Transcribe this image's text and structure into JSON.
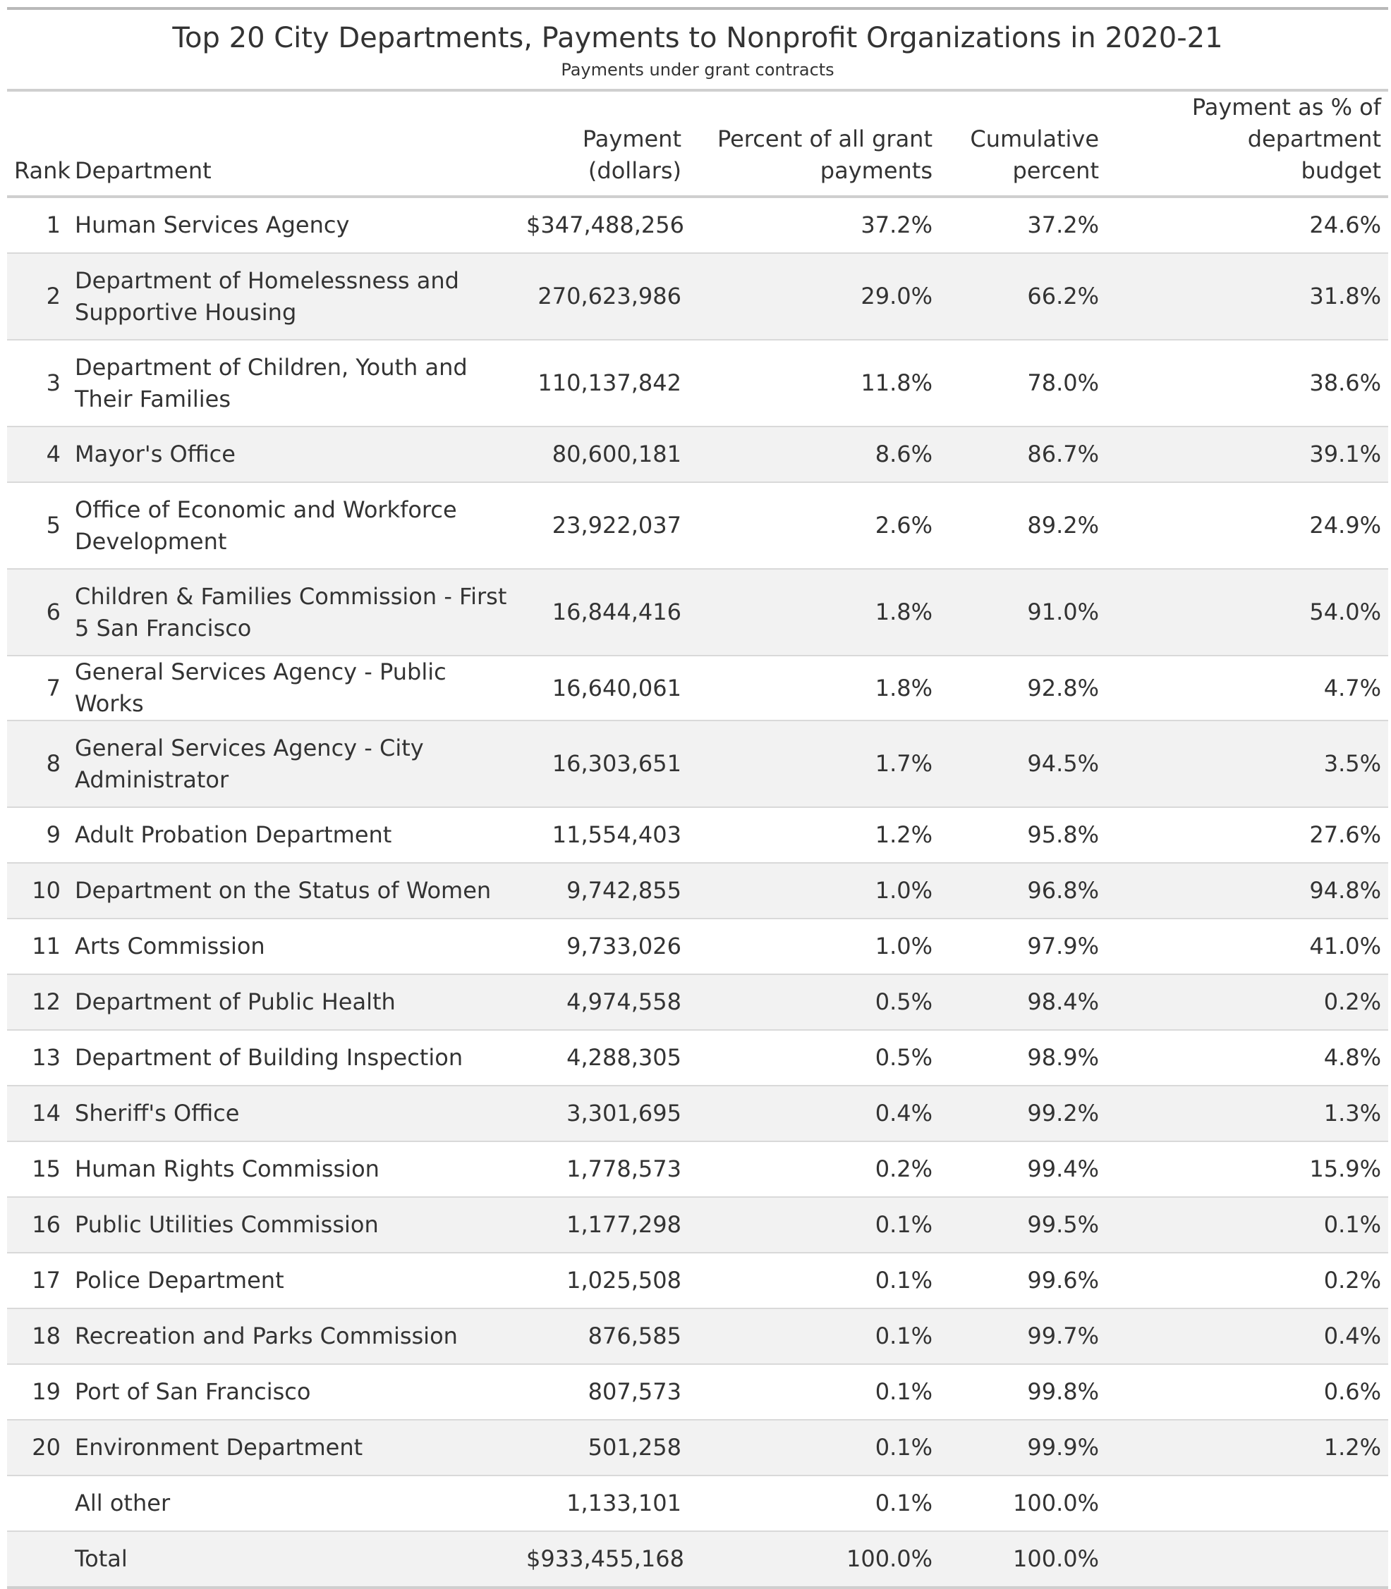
{
  "title": "Top 20 City Departments, Payments to Nonprofit Organizations in 2020-21",
  "subtitle": "Payments under grant contracts",
  "columns": {
    "rank": "Rank",
    "department": "Department",
    "payment_line1": "Payment",
    "payment_line2": "(dollars)",
    "percent_line1": "Percent of all grant",
    "percent_line2": "payments",
    "cumulative_line1": "Cumulative",
    "cumulative_line2": "percent",
    "budget_line1": "Payment as % of department",
    "budget_line2": "budget"
  },
  "rows": [
    {
      "rank": "1",
      "department": "Human Services Agency",
      "payment": "$347,488,256",
      "percent": "37.2%",
      "cumulative": "37.2%",
      "budget": "24.6%"
    },
    {
      "rank": "2",
      "department": "Department of Homelessness and Supportive Housing",
      "payment": "270,623,986",
      "percent": "29.0%",
      "cumulative": "66.2%",
      "budget": "31.8%"
    },
    {
      "rank": "3",
      "department": "Department of Children, Youth and Their Families",
      "payment": "110,137,842",
      "percent": "11.8%",
      "cumulative": "78.0%",
      "budget": "38.6%"
    },
    {
      "rank": "4",
      "department": "Mayor's Office",
      "payment": "80,600,181",
      "percent": "8.6%",
      "cumulative": "86.7%",
      "budget": "39.1%"
    },
    {
      "rank": "5",
      "department": "Office of Economic and Workforce Development",
      "payment": "23,922,037",
      "percent": "2.6%",
      "cumulative": "89.2%",
      "budget": "24.9%"
    },
    {
      "rank": "6",
      "department": "Children & Families Commission - First 5 San Francisco",
      "payment": "16,844,416",
      "percent": "1.8%",
      "cumulative": "91.0%",
      "budget": "54.0%"
    },
    {
      "rank": "7",
      "department": "General Services Agency - Public Works",
      "payment": "16,640,061",
      "percent": "1.8%",
      "cumulative": "92.8%",
      "budget": "4.7%"
    },
    {
      "rank": "8",
      "department": "General Services Agency - City Administrator",
      "payment": "16,303,651",
      "percent": "1.7%",
      "cumulative": "94.5%",
      "budget": "3.5%"
    },
    {
      "rank": "9",
      "department": "Adult Probation Department",
      "payment": "11,554,403",
      "percent": "1.2%",
      "cumulative": "95.8%",
      "budget": "27.6%"
    },
    {
      "rank": "10",
      "department": "Department on the Status of Women",
      "payment": "9,742,855",
      "percent": "1.0%",
      "cumulative": "96.8%",
      "budget": "94.8%"
    },
    {
      "rank": "11",
      "department": "Arts Commission",
      "payment": "9,733,026",
      "percent": "1.0%",
      "cumulative": "97.9%",
      "budget": "41.0%"
    },
    {
      "rank": "12",
      "department": "Department of Public Health",
      "payment": "4,974,558",
      "percent": "0.5%",
      "cumulative": "98.4%",
      "budget": "0.2%"
    },
    {
      "rank": "13",
      "department": "Department of Building Inspection",
      "payment": "4,288,305",
      "percent": "0.5%",
      "cumulative": "98.9%",
      "budget": "4.8%"
    },
    {
      "rank": "14",
      "department": "Sheriff's Office",
      "payment": "3,301,695",
      "percent": "0.4%",
      "cumulative": "99.2%",
      "budget": "1.3%"
    },
    {
      "rank": "15",
      "department": "Human Rights Commission",
      "payment": "1,778,573",
      "percent": "0.2%",
      "cumulative": "99.4%",
      "budget": "15.9%"
    },
    {
      "rank": "16",
      "department": "Public Utilities Commission",
      "payment": "1,177,298",
      "percent": "0.1%",
      "cumulative": "99.5%",
      "budget": "0.1%"
    },
    {
      "rank": "17",
      "department": "Police Department",
      "payment": "1,025,508",
      "percent": "0.1%",
      "cumulative": "99.6%",
      "budget": "0.2%"
    },
    {
      "rank": "18",
      "department": "Recreation and Parks Commission",
      "payment": "876,585",
      "percent": "0.1%",
      "cumulative": "99.7%",
      "budget": "0.4%"
    },
    {
      "rank": "19",
      "department": "Port of San Francisco",
      "payment": "807,573",
      "percent": "0.1%",
      "cumulative": "99.8%",
      "budget": "0.6%"
    },
    {
      "rank": "20",
      "department": "Environment Department",
      "payment": "501,258",
      "percent": "0.1%",
      "cumulative": "99.9%",
      "budget": "1.2%"
    },
    {
      "rank": "",
      "department": "All other",
      "payment": "1,133,101",
      "percent": "0.1%",
      "cumulative": "100.0%",
      "budget": ""
    },
    {
      "rank": "",
      "department": "Total",
      "payment": "$933,455,168",
      "percent": "100.0%",
      "cumulative": "100.0%",
      "budget": ""
    }
  ],
  "colors": {
    "text": "#333333",
    "stripe": "#f2f2f2",
    "rule": "#cfcfcf"
  }
}
